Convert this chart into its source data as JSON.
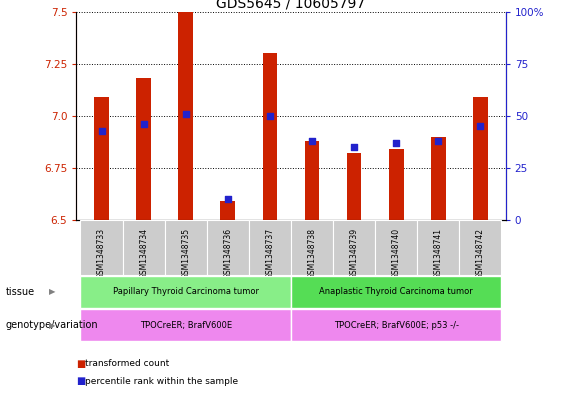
{
  "title": "GDS5645 / 10605797",
  "samples": [
    "GSM1348733",
    "GSM1348734",
    "GSM1348735",
    "GSM1348736",
    "GSM1348737",
    "GSM1348738",
    "GSM1348739",
    "GSM1348740",
    "GSM1348741",
    "GSM1348742"
  ],
  "transformed_count": [
    7.09,
    7.18,
    7.5,
    6.59,
    7.3,
    6.88,
    6.82,
    6.84,
    6.9,
    7.09
  ],
  "percentile_rank": [
    43,
    46,
    51,
    10,
    50,
    38,
    35,
    37,
    38,
    45
  ],
  "ylim": [
    6.5,
    7.5
  ],
  "y2lim": [
    0,
    100
  ],
  "yticks": [
    6.5,
    6.75,
    7.0,
    7.25,
    7.5
  ],
  "y2ticks": [
    0,
    25,
    50,
    75,
    100
  ],
  "bar_color": "#cc2200",
  "dot_color": "#2222cc",
  "bar_width": 0.35,
  "tissue_groups": [
    {
      "label": "Papillary Thyroid Carcinoma tumor",
      "start": 0,
      "end": 5,
      "color": "#88ee88"
    },
    {
      "label": "Anaplastic Thyroid Carcinoma tumor",
      "start": 5,
      "end": 10,
      "color": "#55dd55"
    }
  ],
  "genotype_groups": [
    {
      "label": "TPOCreER; BrafV600E",
      "start": 0,
      "end": 5,
      "color": "#ee88ee"
    },
    {
      "label": "TPOCreER; BrafV600E; p53 -/-",
      "start": 5,
      "end": 10,
      "color": "#ee88ee"
    }
  ],
  "legend_items": [
    {
      "color": "#cc2200",
      "label": "transformed count"
    },
    {
      "color": "#2222cc",
      "label": "percentile rank within the sample"
    }
  ],
  "tissue_label": "tissue",
  "genotype_label": "genotype/variation",
  "left_axis_color": "#cc2200",
  "right_axis_color": "#2222cc",
  "title_fontsize": 10,
  "tick_fontsize": 7.5,
  "sample_cell_color": "#cccccc"
}
